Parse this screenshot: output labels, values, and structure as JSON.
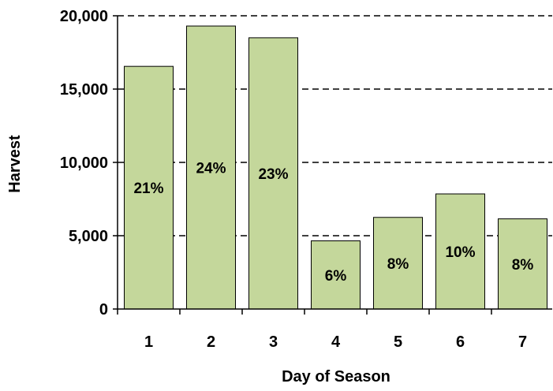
{
  "chart_data": {
    "type": "bar",
    "title": "",
    "xlabel": "Day of Season",
    "ylabel": "Harvest",
    "categories": [
      "1",
      "2",
      "3",
      "4",
      "5",
      "6",
      "7"
    ],
    "values": [
      16550,
      19300,
      18500,
      4650,
      6250,
      7850,
      6150
    ],
    "data_labels": [
      "21%",
      "24%",
      "23%",
      "6%",
      "8%",
      "10%",
      "8%"
    ],
    "ylim": [
      0,
      20000
    ],
    "yticks": [
      0,
      5000,
      10000,
      15000,
      20000
    ],
    "ytick_labels": [
      "0",
      "5,000",
      "10,000",
      "15,000",
      "20,000"
    ],
    "grid": "horizontal dashed",
    "legend": "none",
    "colors": {
      "bar_fill": "#c4d79b",
      "bar_stroke": "#000000",
      "grid": "#000000",
      "axis": "#000000"
    }
  }
}
